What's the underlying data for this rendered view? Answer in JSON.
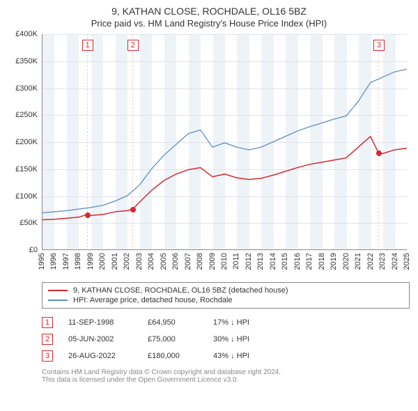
{
  "title_line1": "9, KATHAN CLOSE, ROCHDALE, OL16 5BZ",
  "title_line2": "Price paid vs. HM Land Registry's House Price Index (HPI)",
  "chart": {
    "type": "line",
    "background_color": "#ffffff",
    "grid_color": "#dfe3e8",
    "band_color": "#eef3f8",
    "band_alt_color": "#ffffff",
    "axis_color": "#888888",
    "text_color": "#333333",
    "x_years": [
      1995,
      1996,
      1997,
      1998,
      1999,
      2000,
      2001,
      2002,
      2003,
      2004,
      2005,
      2006,
      2007,
      2008,
      2009,
      2010,
      2011,
      2012,
      2013,
      2014,
      2015,
      2016,
      2017,
      2018,
      2019,
      2020,
      2021,
      2022,
      2023,
      2024,
      2025
    ],
    "x_min": 1995,
    "x_max": 2025,
    "y_min": 0,
    "y_max": 400,
    "y_ticks": [
      0,
      50,
      100,
      150,
      200,
      250,
      300,
      350,
      400
    ],
    "y_tick_labels": [
      "£0",
      "£50K",
      "£100K",
      "£150K",
      "£200K",
      "£250K",
      "£300K",
      "£350K",
      "£400K"
    ],
    "series": {
      "price_paid": {
        "label": "9, KATHAN CLOSE, ROCHDALE, OL16 5BZ (detached house)",
        "color": "#d9272e",
        "line_width": 1.5,
        "points": [
          [
            1995,
            55
          ],
          [
            1996,
            56
          ],
          [
            1997,
            58
          ],
          [
            1998,
            60
          ],
          [
            1998.7,
            64.95
          ],
          [
            1999,
            63
          ],
          [
            2000,
            65
          ],
          [
            2001,
            70
          ],
          [
            2002,
            72
          ],
          [
            2002.43,
            75
          ],
          [
            2003,
            88
          ],
          [
            2004,
            110
          ],
          [
            2005,
            128
          ],
          [
            2006,
            140
          ],
          [
            2007,
            148
          ],
          [
            2008,
            152
          ],
          [
            2009,
            135
          ],
          [
            2010,
            140
          ],
          [
            2011,
            133
          ],
          [
            2012,
            130
          ],
          [
            2013,
            132
          ],
          [
            2014,
            138
          ],
          [
            2015,
            145
          ],
          [
            2016,
            152
          ],
          [
            2017,
            158
          ],
          [
            2018,
            162
          ],
          [
            2019,
            166
          ],
          [
            2020,
            170
          ],
          [
            2021,
            190
          ],
          [
            2022,
            210
          ],
          [
            2022.65,
            180
          ],
          [
            2023,
            178
          ],
          [
            2024,
            185
          ],
          [
            2025,
            188
          ]
        ]
      },
      "hpi": {
        "label": "HPI: Average price, detached house, Rochdale",
        "color": "#5b8fc7",
        "line_width": 1.3,
        "points": [
          [
            1995,
            68
          ],
          [
            1996,
            70
          ],
          [
            1997,
            72
          ],
          [
            1998,
            75
          ],
          [
            1999,
            78
          ],
          [
            2000,
            82
          ],
          [
            2001,
            90
          ],
          [
            2002,
            100
          ],
          [
            2003,
            120
          ],
          [
            2004,
            150
          ],
          [
            2005,
            175
          ],
          [
            2006,
            195
          ],
          [
            2007,
            215
          ],
          [
            2008,
            222
          ],
          [
            2009,
            190
          ],
          [
            2010,
            198
          ],
          [
            2011,
            190
          ],
          [
            2012,
            185
          ],
          [
            2013,
            190
          ],
          [
            2014,
            200
          ],
          [
            2015,
            210
          ],
          [
            2016,
            220
          ],
          [
            2017,
            228
          ],
          [
            2018,
            235
          ],
          [
            2019,
            242
          ],
          [
            2020,
            248
          ],
          [
            2021,
            275
          ],
          [
            2022,
            310
          ],
          [
            2023,
            320
          ],
          [
            2024,
            330
          ],
          [
            2025,
            335
          ]
        ]
      }
    },
    "marker_color": "#d9272e",
    "markers": [
      {
        "num": "1",
        "year": 1998.7,
        "value": 64.95,
        "line_color": "#f3b9bb"
      },
      {
        "num": "2",
        "year": 2002.43,
        "value": 75.0,
        "line_color": "#f3b9bb"
      },
      {
        "num": "3",
        "year": 2022.65,
        "value": 180.0,
        "line_color": "#f3b9bb"
      }
    ]
  },
  "legend": [
    {
      "color": "#d9272e",
      "text": "9, KATHAN CLOSE, ROCHDALE, OL16 5BZ (detached house)"
    },
    {
      "color": "#5b8fc7",
      "text": "HPI: Average price, detached house, Rochdale"
    }
  ],
  "transactions": [
    {
      "num": "1",
      "date": "11-SEP-1998",
      "price": "£64,950",
      "hpi": "17% ↓ HPI"
    },
    {
      "num": "2",
      "date": "05-JUN-2002",
      "price": "£75,000",
      "hpi": "30% ↓ HPI"
    },
    {
      "num": "3",
      "date": "26-AUG-2022",
      "price": "£180,000",
      "hpi": "43% ↓ HPI"
    }
  ],
  "footer_line1": "Contains HM Land Registry data © Crown copyright and database right 2024.",
  "footer_line2": "This data is licensed under the Open Government Licence v3.0.",
  "marker_box_border": "#d9272e"
}
